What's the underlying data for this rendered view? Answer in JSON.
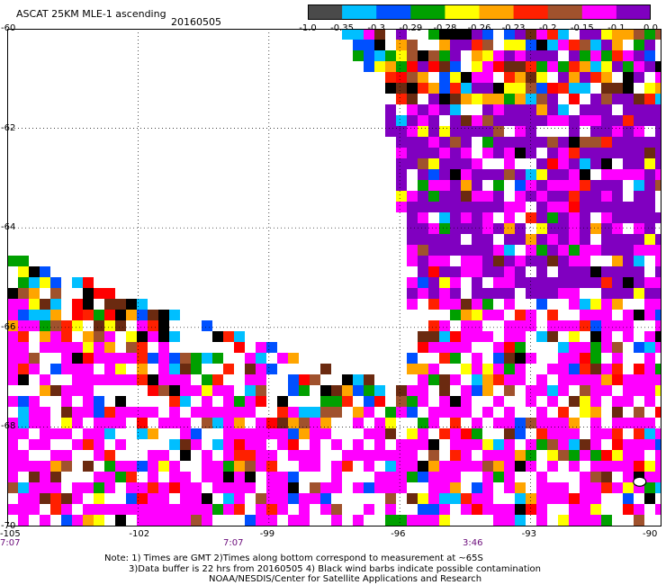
{
  "header": {
    "product": "ASCAT 25KM MLE-1 ascending",
    "date": "20160505"
  },
  "colorbar": {
    "colors": [
      "#4a4a4a",
      "#00bfff",
      "#0050ff",
      "#00a000",
      "#ffff00",
      "#ffa500",
      "#ff2000",
      "#a0522d",
      "#ff00ff",
      "#7f00bf"
    ],
    "labels": [
      "-1.0",
      "-0.35",
      "-0.3",
      "-0.29",
      "-0.28",
      "-0.26",
      "-0.23",
      "-0.2",
      "-0.15",
      "-0.1",
      "0.0"
    ]
  },
  "axes": {
    "y_labels": [
      "-60",
      "-62",
      "-64",
      "-66",
      "-68",
      "-70"
    ],
    "x_labels": [
      "-105",
      "-102",
      "-99",
      "-96",
      "-93",
      "-90"
    ],
    "time_labels": [
      "7:07",
      "7:07",
      "3:46"
    ]
  },
  "notes": {
    "line1": "Note: 1) Times are GMT 2)Times along bottom correspond to measurement at ~65S",
    "line2": "3)Data buffer is 22 hrs from 20160505 4) Black wind barbs indicate possible contamination",
    "line3": "NOAA/NESDIS/Center for Satellite Applications and Research"
  },
  "map": {
    "lon_range": [
      -105,
      -90
    ],
    "lat_range": [
      -70,
      -60
    ],
    "gridlines": true,
    "swaths": "two ascending swaths: a western swath covering roughly -105 to -94 east of a diagonal edge, and an eastern swath covering roughly -96 to -90 from -60 to -70"
  }
}
